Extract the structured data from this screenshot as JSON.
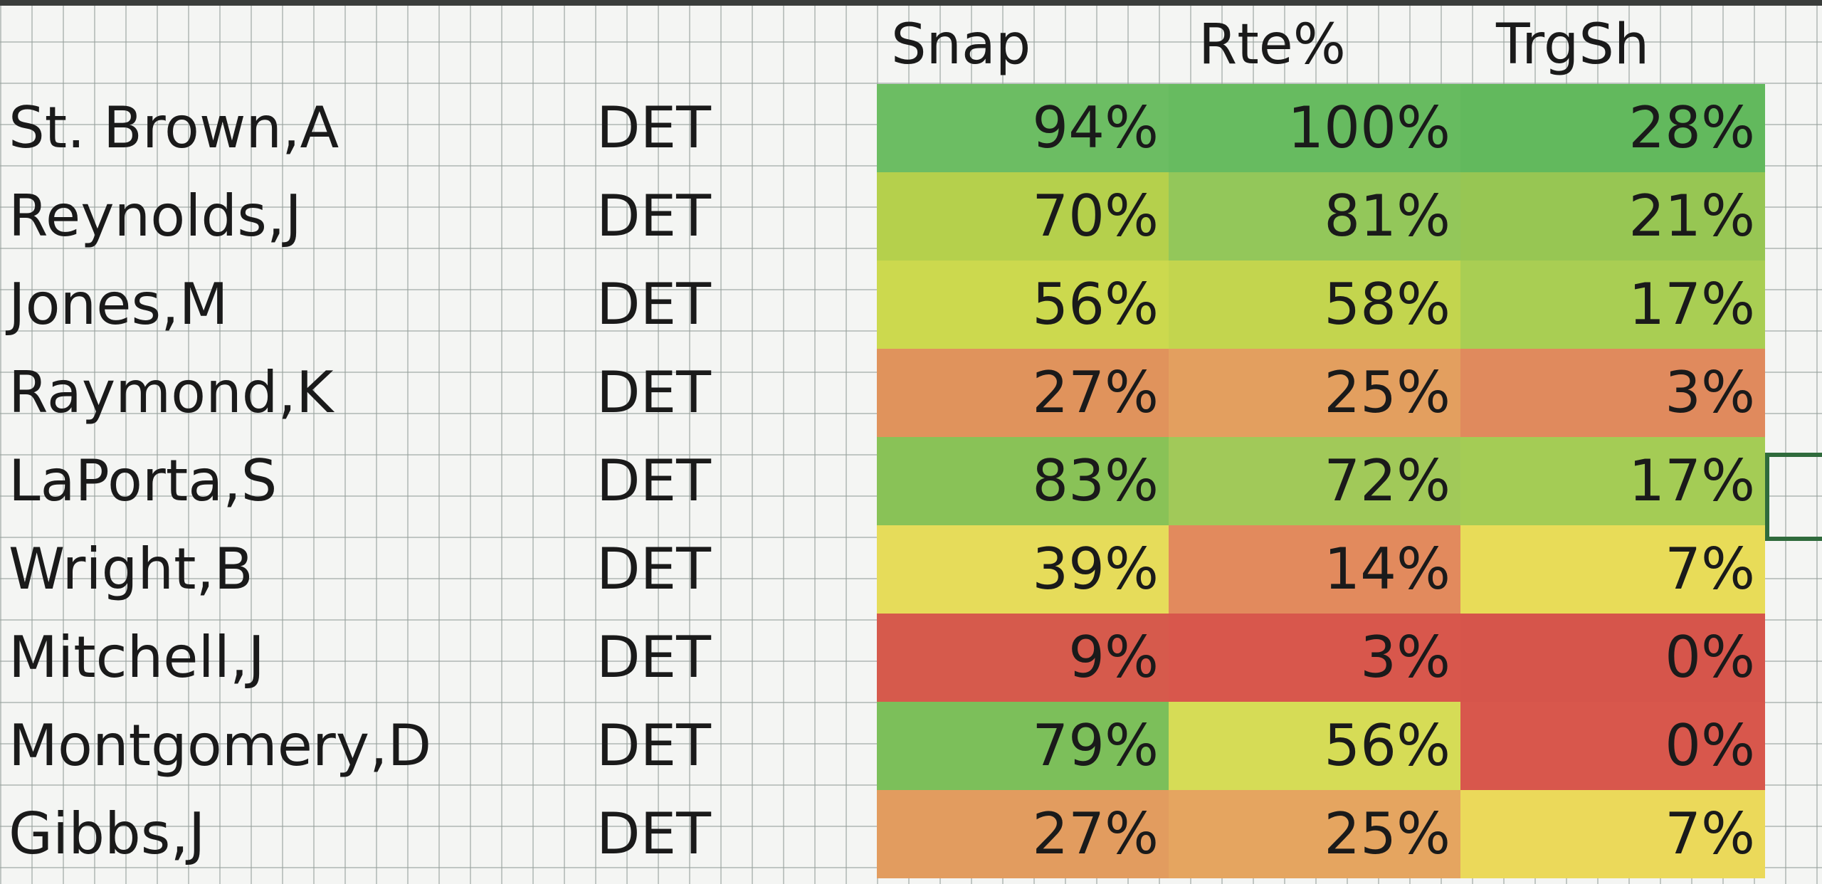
{
  "header": {
    "snap": "Snap",
    "rte": "Rte%",
    "trg": "TrgSh"
  },
  "colors": {
    "green": "#63be7b",
    "yellow": "#f5e86a",
    "red": "#d9544a"
  },
  "rows": [
    {
      "name": "St. Brown,A",
      "team": "DET",
      "snap": "94%",
      "rte": "100%",
      "trg": "28%",
      "snap_color": "#6cbd63",
      "rte_color": "#67bb60",
      "trg_color": "#62b95d"
    },
    {
      "name": "Reynolds,J",
      "team": "DET",
      "snap": "70%",
      "rte": "81%",
      "trg": "21%",
      "snap_color": "#b5d04c",
      "rte_color": "#93c75a",
      "trg_color": "#97c653"
    },
    {
      "name": "Jones,M",
      "team": "DET",
      "snap": "56%",
      "rte": "58%",
      "trg": "17%",
      "snap_color": "#ccd94e",
      "rte_color": "#c3d54e",
      "trg_color": "#a9ce53"
    },
    {
      "name": "Raymond,K",
      "team": "DET",
      "snap": "27%",
      "rte": "25%",
      "trg": "3%",
      "snap_color": "#e0935c",
      "rte_color": "#e39f5f",
      "trg_color": "#e08a5d"
    },
    {
      "name": "LaPorta,S",
      "team": "DET",
      "snap": "83%",
      "rte": "72%",
      "trg": "17%",
      "snap_color": "#89c257",
      "rte_color": "#a1c959",
      "trg_color": "#a4cc55"
    },
    {
      "name": "Wright,B",
      "team": "DET",
      "snap": "39%",
      "rte": "14%",
      "trg": "7%",
      "snap_color": "#e6dc5a",
      "rte_color": "#e28a5d",
      "trg_color": "#e8dc58"
    },
    {
      "name": "Mitchell,J",
      "team": "DET",
      "snap": "9%",
      "rte": "3%",
      "trg": "0%",
      "snap_color": "#d65a4c",
      "rte_color": "#d8574c",
      "trg_color": "#d6554b"
    },
    {
      "name": "Montgomery,D",
      "team": "DET",
      "snap": "79%",
      "rte": "56%",
      "trg": "0%",
      "snap_color": "#7cbf5a",
      "rte_color": "#d6dc56",
      "trg_color": "#d8574c"
    },
    {
      "name": "Gibbs,J",
      "team": "DET",
      "snap": "27%",
      "rte": "25%",
      "trg": "7%",
      "snap_color": "#e29c5f",
      "rte_color": "#e5a560",
      "trg_color": "#ebd95a"
    }
  ]
}
